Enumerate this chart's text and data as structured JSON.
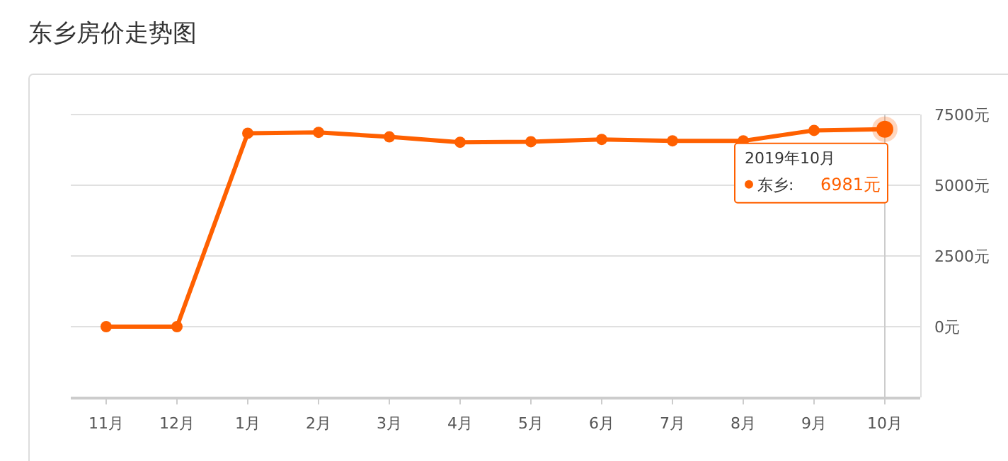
{
  "chart_data": {
    "type": "line",
    "title": "东乡房价走势图",
    "categories": [
      "11月",
      "12月",
      "1月",
      "2月",
      "3月",
      "4月",
      "5月",
      "6月",
      "7月",
      "8月",
      "9月",
      "10月"
    ],
    "series": [
      {
        "name": "东乡:",
        "color": "#ff6000",
        "values": [
          0,
          0,
          6840,
          6870,
          6710,
          6520,
          6540,
          6620,
          6570,
          6570,
          6940,
          6981
        ],
        "value_labels": [
          null,
          null,
          null,
          null,
          null,
          null,
          null,
          null,
          null,
          null,
          null,
          "6981元"
        ]
      }
    ],
    "ylim": [
      -2500,
      7500
    ],
    "yticks": [
      {
        "value": -2500,
        "label": null
      },
      {
        "value": 0,
        "label": "0元"
      },
      {
        "value": 2500,
        "label": "2500元"
      },
      {
        "value": 5000,
        "label": "5000元"
      },
      {
        "value": 7500,
        "label": "7500元"
      }
    ],
    "ref_lines": [
      {
        "axis": "x",
        "value": "10月",
        "color": "#cccccc"
      }
    ],
    "annotations": [
      "2019年10月"
    ],
    "grid": "y",
    "legend": "top right",
    "marker": "circle",
    "line_style": "solid"
  }
}
